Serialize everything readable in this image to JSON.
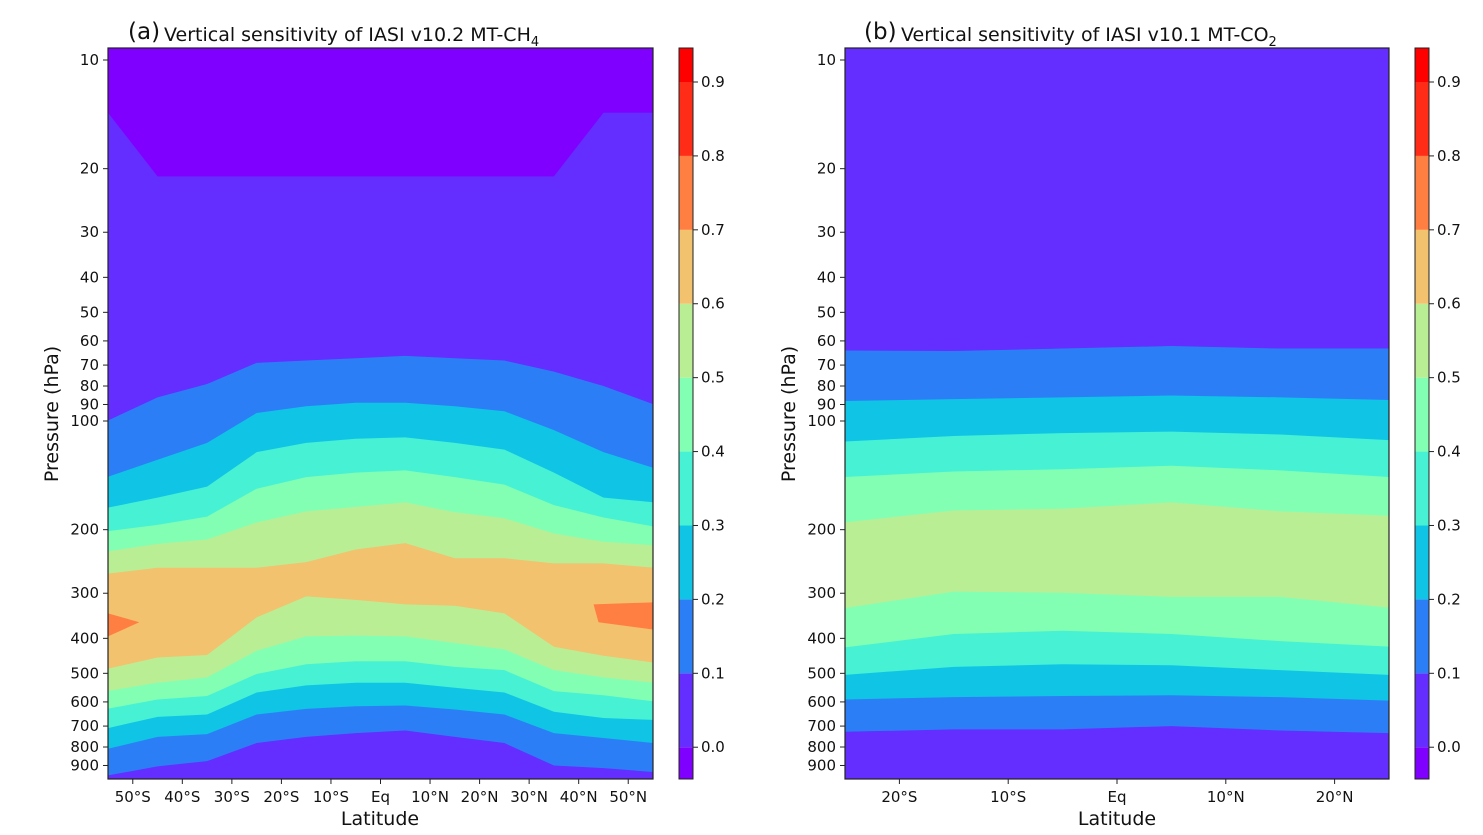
{
  "chart_data": [
    {
      "type": "contourf",
      "panel_letter": "(a)",
      "title": "Vertical sensitivity of IASI v10.2 MT-CH",
      "title_subscript": "4",
      "xlabel": "Latitude",
      "ylabel": "Pressure (hPa)",
      "x_range": [
        -55,
        55
      ],
      "y_range": [
        981,
        9.3
      ],
      "y_scale": "log",
      "y_ticks": [
        10,
        20,
        30,
        40,
        50,
        60,
        70,
        80,
        90,
        100,
        200,
        300,
        400,
        500,
        600,
        700,
        800,
        900
      ],
      "y_tick_labels": [
        "10",
        "20",
        "30",
        "40",
        "50",
        "60",
        "70",
        "80",
        "90",
        "100",
        "200",
        "300",
        "400",
        "500",
        "600",
        "700",
        "800",
        "900"
      ],
      "x_ticks": [
        -50,
        -40,
        -30,
        -20,
        -10,
        0,
        10,
        20,
        30,
        40,
        50
      ],
      "x_tick_labels": [
        "50°S",
        "40°S",
        "30°S",
        "20°S",
        "10°S",
        "Eq",
        "10°N",
        "20°N",
        "30°N",
        "40°N",
        "50°N"
      ],
      "latitudes": [
        -55,
        -45,
        -35,
        -25,
        -15,
        -5,
        5,
        15,
        25,
        35,
        45,
        55
      ],
      "background_band": "0.0-0.1",
      "negative_region_lower_boundary_hPa": [
        14,
        21,
        21,
        21,
        21,
        21,
        21,
        21,
        21,
        21,
        14,
        14
      ],
      "level_regions": [
        {
          "level": 0.1,
          "upper_hPa": [
            100,
            86,
            79,
            69,
            68,
            67,
            66,
            67,
            68,
            73,
            80,
            90
          ],
          "lower_hPa": [
            960,
            905,
            875,
            780,
            750,
            732,
            720,
            750,
            780,
            900,
            915,
            939
          ]
        },
        {
          "level": 0.2,
          "upper_hPa": [
            143,
            128,
            115,
            95,
            91,
            89,
            89,
            91,
            94,
            106,
            122,
            135
          ],
          "lower_hPa": [
            810,
            750,
            737,
            650,
            627,
            617,
            614,
            630,
            650,
            732,
            755,
            780
          ]
        },
        {
          "level": 0.3,
          "upper_hPa": [
            174,
            163,
            152,
            122,
            115,
            112,
            111,
            115,
            120,
            139,
            163,
            168
          ],
          "lower_hPa": [
            710,
            660,
            650,
            565,
            540,
            531,
            531,
            548,
            565,
            639,
            665,
            673
          ]
        },
        {
          "level": 0.4,
          "upper_hPa": [
            202,
            194,
            184,
            154,
            143,
            139,
            137,
            143,
            150,
            171,
            185,
            196
          ],
          "lower_hPa": [
            627,
            591,
            578,
            502,
            472,
            463,
            463,
            480,
            490,
            560,
            575,
            598
          ]
        },
        {
          "level": 0.5,
          "upper_hPa": [
            230,
            219,
            213,
            191,
            178,
            173,
            168,
            179,
            186,
            205,
            216,
            221
          ],
          "lower_hPa": [
            560,
            531,
            513,
            433,
            395,
            393,
            395,
            412,
            429,
            490,
            513,
            531
          ]
        },
        {
          "level": 0.6,
          "upper_hPa": [
            265,
            255,
            255,
            255,
            246,
            227,
            218,
            240,
            240,
            248,
            248,
            255
          ],
          "lower_hPa": [
            486,
            452,
            445,
            350,
            306,
            313,
            322,
            325,
            341,
            422,
            447,
            467
          ]
        }
      ],
      "patches_0.7": [
        [
          [
            -55,
            341
          ],
          [
            -48.7,
            361
          ],
          [
            -55,
            395
          ]
        ],
        [
          [
            55,
            318
          ],
          [
            43,
            322
          ],
          [
            44,
            361
          ],
          [
            55,
            378
          ]
        ]
      ],
      "colorbar": {
        "levels": [
          0.0,
          0.1,
          0.2,
          0.3,
          0.4,
          0.5,
          0.6,
          0.7,
          0.8,
          0.9
        ],
        "tick_labels": [
          "0.0",
          "0.1",
          "0.2",
          "0.3",
          "0.4",
          "0.5",
          "0.6",
          "0.7",
          "0.8",
          "0.9"
        ],
        "range": [
          -0.043,
          0.946
        ]
      }
    },
    {
      "type": "contourf",
      "panel_letter": "(b)",
      "title": "Vertical sensitivity of IASI v10.1 MT-CO",
      "title_subscript": "2",
      "xlabel": "Latitude",
      "ylabel": "Pressure (hPa)",
      "x_range": [
        -25,
        25
      ],
      "y_range": [
        981,
        9.3
      ],
      "y_scale": "log",
      "y_ticks": [
        10,
        20,
        30,
        40,
        50,
        60,
        70,
        80,
        90,
        100,
        200,
        300,
        400,
        500,
        600,
        700,
        800,
        900
      ],
      "y_tick_labels": [
        "10",
        "20",
        "30",
        "40",
        "50",
        "60",
        "70",
        "80",
        "90",
        "100",
        "200",
        "300",
        "400",
        "500",
        "600",
        "700",
        "800",
        "900"
      ],
      "x_ticks": [
        -20,
        -10,
        0,
        10,
        20
      ],
      "x_tick_labels": [
        "20°S",
        "10°S",
        "Eq",
        "10°N",
        "20°N"
      ],
      "latitudes": [
        -25,
        -15,
        -5,
        5,
        15,
        25
      ],
      "background_band": "0.0-0.1",
      "level_regions": [
        {
          "level": 0.1,
          "upper_hPa": [
            63.8,
            64,
            63,
            62,
            63,
            63
          ],
          "lower_hPa": [
            726,
            715,
            715,
            700,
            720,
            732
          ]
        },
        {
          "level": 0.2,
          "upper_hPa": [
            88,
            87,
            86,
            85,
            86,
            87.5
          ],
          "lower_hPa": [
            591,
            582,
            578,
            575,
            582,
            595
          ]
        },
        {
          "level": 0.3,
          "upper_hPa": [
            114,
            110,
            108,
            107,
            109,
            113
          ],
          "lower_hPa": [
            505,
            480,
            472,
            475,
            490,
            505
          ]
        },
        {
          "level": 0.4,
          "upper_hPa": [
            143,
            138,
            136,
            133,
            137,
            143
          ],
          "lower_hPa": [
            424,
            389,
            381,
            389,
            407,
            422
          ]
        },
        {
          "level": 0.5,
          "upper_hPa": [
            191,
            177,
            175,
            168,
            178,
            183
          ],
          "lower_hPa": [
            330,
            297,
            299,
            307,
            307,
            329
          ]
        }
      ],
      "colorbar": {
        "levels": [
          0.0,
          0.1,
          0.2,
          0.3,
          0.4,
          0.5,
          0.6,
          0.7,
          0.8,
          0.9
        ],
        "tick_labels": [
          "0.0",
          "0.1",
          "0.2",
          "0.3",
          "0.4",
          "0.5",
          "0.6",
          "0.7",
          "0.8",
          "0.9"
        ],
        "range": [
          -0.043,
          0.946
        ]
      }
    }
  ],
  "band_colors": {
    "below_0.0": "#8000ff",
    "0.0-0.1": "#632eff",
    "0.1-0.2": "#2c7ef7",
    "0.2-0.3": "#10c4e6",
    "0.3-0.4": "#46f2d3",
    "0.4-0.5": "#82ffb3",
    "0.5-0.6": "#baee94",
    "0.6-0.7": "#f2c26e",
    "0.7-0.8": "#ff7e41",
    "0.8-0.9": "#ff2c17",
    "above_0.9": "#ff0000"
  }
}
